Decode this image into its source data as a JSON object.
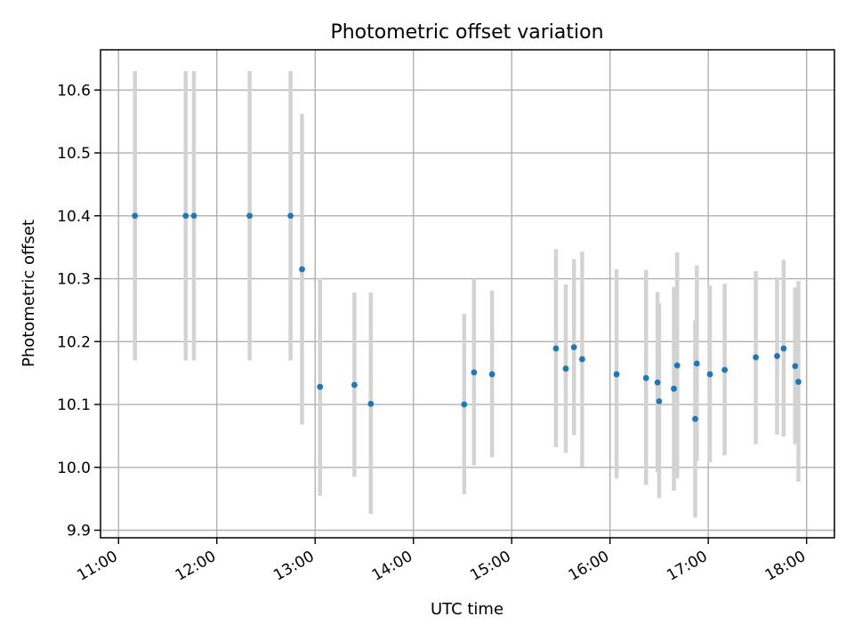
{
  "chart_data": {
    "type": "scatter",
    "title": "Photometric offset variation",
    "xlabel": "UTC time",
    "ylabel": "Photometric offset",
    "xlim": [
      "10:49",
      "18:17"
    ],
    "ylim": [
      9.888,
      10.664
    ],
    "xticks": [
      "11:00",
      "12:00",
      "13:00",
      "14:00",
      "15:00",
      "16:00",
      "17:00",
      "18:00"
    ],
    "yticks": [
      9.9,
      10.0,
      10.1,
      10.2,
      10.3,
      10.4,
      10.5,
      10.6
    ],
    "grid": true,
    "colors": {
      "marker": "#1f77b4",
      "errorbar": "#d3d3d3"
    },
    "points": [
      {
        "time": "11:10",
        "y": 10.4,
        "lo": 10.17,
        "hi": 10.63
      },
      {
        "time": "11:41",
        "y": 10.4,
        "lo": 10.17,
        "hi": 10.63
      },
      {
        "time": "11:46",
        "y": 10.4,
        "lo": 10.17,
        "hi": 10.63
      },
      {
        "time": "12:20",
        "y": 10.4,
        "lo": 10.17,
        "hi": 10.63
      },
      {
        "time": "12:45",
        "y": 10.4,
        "lo": 10.17,
        "hi": 10.63
      },
      {
        "time": "12:52",
        "y": 10.315,
        "lo": 10.068,
        "hi": 10.562
      },
      {
        "time": "13:03",
        "y": 10.128,
        "lo": 9.955,
        "hi": 10.301
      },
      {
        "time": "13:24",
        "y": 10.131,
        "lo": 9.985,
        "hi": 10.278
      },
      {
        "time": "13:34",
        "y": 10.101,
        "lo": 9.926,
        "hi": 10.278
      },
      {
        "time": "14:31",
        "y": 10.1,
        "lo": 9.957,
        "hi": 10.244
      },
      {
        "time": "14:37",
        "y": 10.151,
        "lo": 10.003,
        "hi": 10.3
      },
      {
        "time": "14:48",
        "y": 10.148,
        "lo": 10.016,
        "hi": 10.281
      },
      {
        "time": "15:27",
        "y": 10.189,
        "lo": 10.032,
        "hi": 10.347
      },
      {
        "time": "15:33",
        "y": 10.157,
        "lo": 10.023,
        "hi": 10.291
      },
      {
        "time": "15:38",
        "y": 10.191,
        "lo": 10.051,
        "hi": 10.331
      },
      {
        "time": "15:43",
        "y": 10.172,
        "lo": 10.001,
        "hi": 10.343
      },
      {
        "time": "16:04",
        "y": 10.148,
        "lo": 9.982,
        "hi": 10.315
      },
      {
        "time": "16:22",
        "y": 10.142,
        "lo": 9.972,
        "hi": 10.314
      },
      {
        "time": "16:29",
        "y": 10.135,
        "lo": 9.992,
        "hi": 10.279
      },
      {
        "time": "16:30",
        "y": 10.105,
        "lo": 9.951,
        "hi": 10.261
      },
      {
        "time": "16:39",
        "y": 10.125,
        "lo": 9.963,
        "hi": 10.287
      },
      {
        "time": "16:41",
        "y": 10.162,
        "lo": 9.982,
        "hi": 10.342
      },
      {
        "time": "16:52",
        "y": 10.077,
        "lo": 9.92,
        "hi": 10.234
      },
      {
        "time": "16:53",
        "y": 10.165,
        "lo": 10.01,
        "hi": 10.321
      },
      {
        "time": "17:01",
        "y": 10.148,
        "lo": 10.008,
        "hi": 10.289
      },
      {
        "time": "17:10",
        "y": 10.155,
        "lo": 10.019,
        "hi": 10.292
      },
      {
        "time": "17:29",
        "y": 10.175,
        "lo": 10.037,
        "hi": 10.312
      },
      {
        "time": "17:42",
        "y": 10.177,
        "lo": 10.052,
        "hi": 10.302
      },
      {
        "time": "17:46",
        "y": 10.189,
        "lo": 10.049,
        "hi": 10.33
      },
      {
        "time": "17:53",
        "y": 10.161,
        "lo": 10.037,
        "hi": 10.286
      },
      {
        "time": "17:55",
        "y": 10.136,
        "lo": 9.977,
        "hi": 10.296
      }
    ]
  }
}
